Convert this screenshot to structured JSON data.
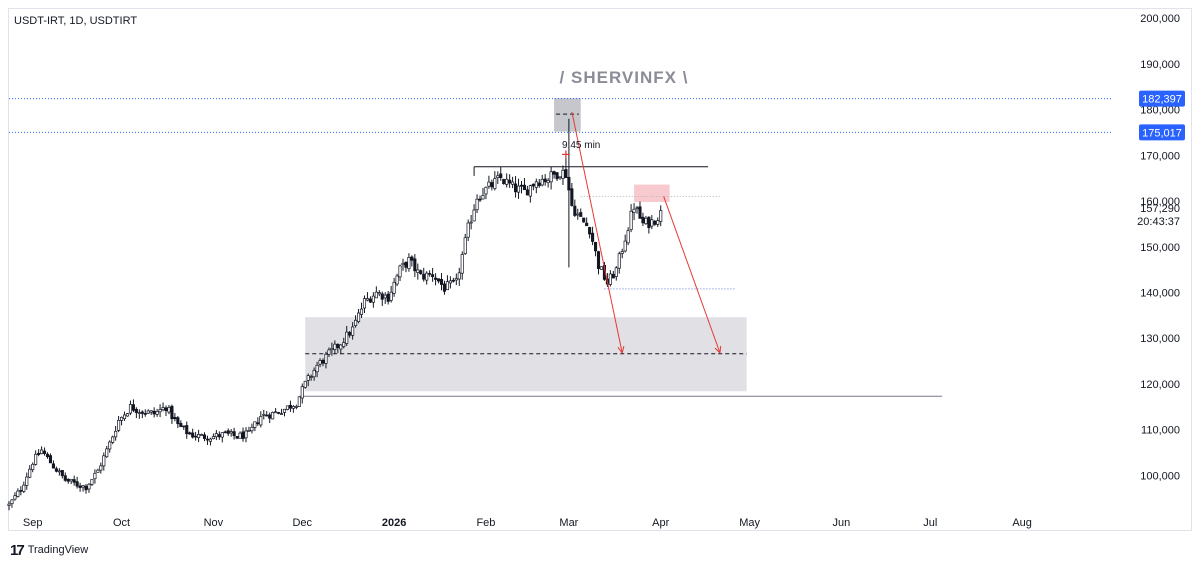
{
  "header": {
    "symbol": "USDT-IRT, 1D, USDTIRT"
  },
  "footer": {
    "brand": "TradingView",
    "logo_mark": "17"
  },
  "watermark": "/ SHERVINFX \\",
  "annotations": {
    "time_label": "9:45 min"
  },
  "price_axis": {
    "ticks": [
      "200,000",
      "190,000",
      "180,000",
      "170,000",
      "160,000",
      "150,000",
      "140,000",
      "130,000",
      "120,000",
      "110,000",
      "100,000"
    ],
    "tick_values": [
      200000,
      190000,
      180000,
      170000,
      160000,
      150000,
      140000,
      130000,
      120000,
      110000,
      100000
    ],
    "tags": [
      {
        "label": "182,397",
        "value": 182397,
        "color": "#2962ff"
      },
      {
        "label": "175,017",
        "value": 175017,
        "color": "#2962ff"
      }
    ],
    "last_price": "157,290",
    "countdown": "20:43:37"
  },
  "time_axis": {
    "labels": [
      "Sep",
      "Oct",
      "Nov",
      "Dec",
      "2026",
      "Feb",
      "Mar",
      "Apr",
      "May",
      "Jun",
      "Jul",
      "Aug"
    ],
    "bold": [
      "2026"
    ]
  },
  "chart_data": {
    "type": "candlestick",
    "title": "USDT-IRT, 1D, USDTIRT",
    "ylim": [
      92000,
      202000
    ],
    "x_range": [
      "2025-08-24",
      "2026-08-31"
    ],
    "grid": false,
    "series": [
      {
        "points": [
          [
            "2025-08-24",
            93500
          ],
          [
            "2025-08-28",
            97000
          ],
          [
            "2025-09-01",
            103000
          ],
          [
            "2025-09-04",
            105500
          ],
          [
            "2025-09-08",
            102000
          ],
          [
            "2025-09-12",
            99000
          ],
          [
            "2025-09-16",
            98000
          ],
          [
            "2025-09-19",
            97500
          ],
          [
            "2025-09-23",
            101000
          ],
          [
            "2025-09-27",
            107000
          ],
          [
            "2025-09-30",
            112000
          ],
          [
            "2025-10-04",
            115000
          ],
          [
            "2025-10-08",
            114000
          ],
          [
            "2025-10-12",
            113500
          ],
          [
            "2025-10-16",
            115000
          ],
          [
            "2025-10-20",
            111000
          ],
          [
            "2025-10-24",
            109000
          ],
          [
            "2025-10-28",
            108500
          ],
          [
            "2025-11-01",
            108500
          ],
          [
            "2025-11-05",
            109000
          ],
          [
            "2025-11-09",
            108500
          ],
          [
            "2025-11-13",
            109000
          ],
          [
            "2025-11-17",
            113000
          ],
          [
            "2025-11-21",
            113500
          ],
          [
            "2025-11-25",
            114500
          ],
          [
            "2025-11-29",
            116000
          ],
          [
            "2025-12-02",
            120000
          ],
          [
            "2025-12-06",
            124000
          ],
          [
            "2025-12-10",
            126500
          ],
          [
            "2025-12-14",
            129000
          ],
          [
            "2025-12-18",
            132000
          ],
          [
            "2025-12-22",
            138000
          ],
          [
            "2025-12-26",
            140000
          ],
          [
            "2025-12-30",
            139000
          ],
          [
            "2026-01-03",
            145000
          ],
          [
            "2026-01-06",
            147000
          ],
          [
            "2026-01-10",
            143500
          ],
          [
            "2026-01-14",
            144000
          ],
          [
            "2026-01-18",
            141000
          ],
          [
            "2026-01-22",
            142000
          ],
          [
            "2026-01-26",
            154000
          ],
          [
            "2026-01-29",
            161000
          ],
          [
            "2026-02-02",
            163000
          ],
          [
            "2026-02-06",
            165000
          ],
          [
            "2026-02-10",
            163000
          ],
          [
            "2026-02-14",
            162000
          ],
          [
            "2026-02-18",
            164500
          ],
          [
            "2026-02-22",
            165000
          ],
          [
            "2026-02-26",
            166500
          ],
          [
            "2026-02-28",
            166000
          ],
          [
            "2026-03-02",
            159000
          ],
          [
            "2026-03-05",
            156000
          ],
          [
            "2026-03-08",
            154000
          ],
          [
            "2026-03-11",
            146000
          ],
          [
            "2026-03-14",
            142000
          ],
          [
            "2026-03-17",
            145000
          ],
          [
            "2026-03-20",
            152000
          ],
          [
            "2026-03-23",
            159000
          ],
          [
            "2026-03-26",
            155000
          ],
          [
            "2026-03-29",
            155500
          ],
          [
            "2026-04-01",
            157290
          ]
        ]
      }
    ],
    "levels": [
      {
        "label": "182,397",
        "value": 182397
      },
      {
        "label": "175,017",
        "value": 175017
      }
    ],
    "zones": [
      {
        "x": [
          "2026-02-24",
          "2026-03-05"
        ],
        "y": [
          175200,
          182500
        ],
        "color": "#c6c7cc"
      },
      {
        "x": [
          "2026-03-23",
          "2026-04-04"
        ],
        "y": [
          159800,
          163600
        ],
        "color": "#f8c9cf"
      },
      {
        "x": [
          "2025-12-02",
          "2026-04-30"
        ],
        "y": [
          118400,
          134600
        ],
        "color": "#dadbe0"
      }
    ],
    "arrows": [
      {
        "from": [
          "2026-03-02",
          179500
        ],
        "to": [
          "2026-03-19",
          126800
        ]
      },
      {
        "from": [
          "2026-04-02",
          161000
        ],
        "to": [
          "2026-04-21",
          126800
        ]
      }
    ],
    "annotations": [
      "9:45 min"
    ]
  }
}
